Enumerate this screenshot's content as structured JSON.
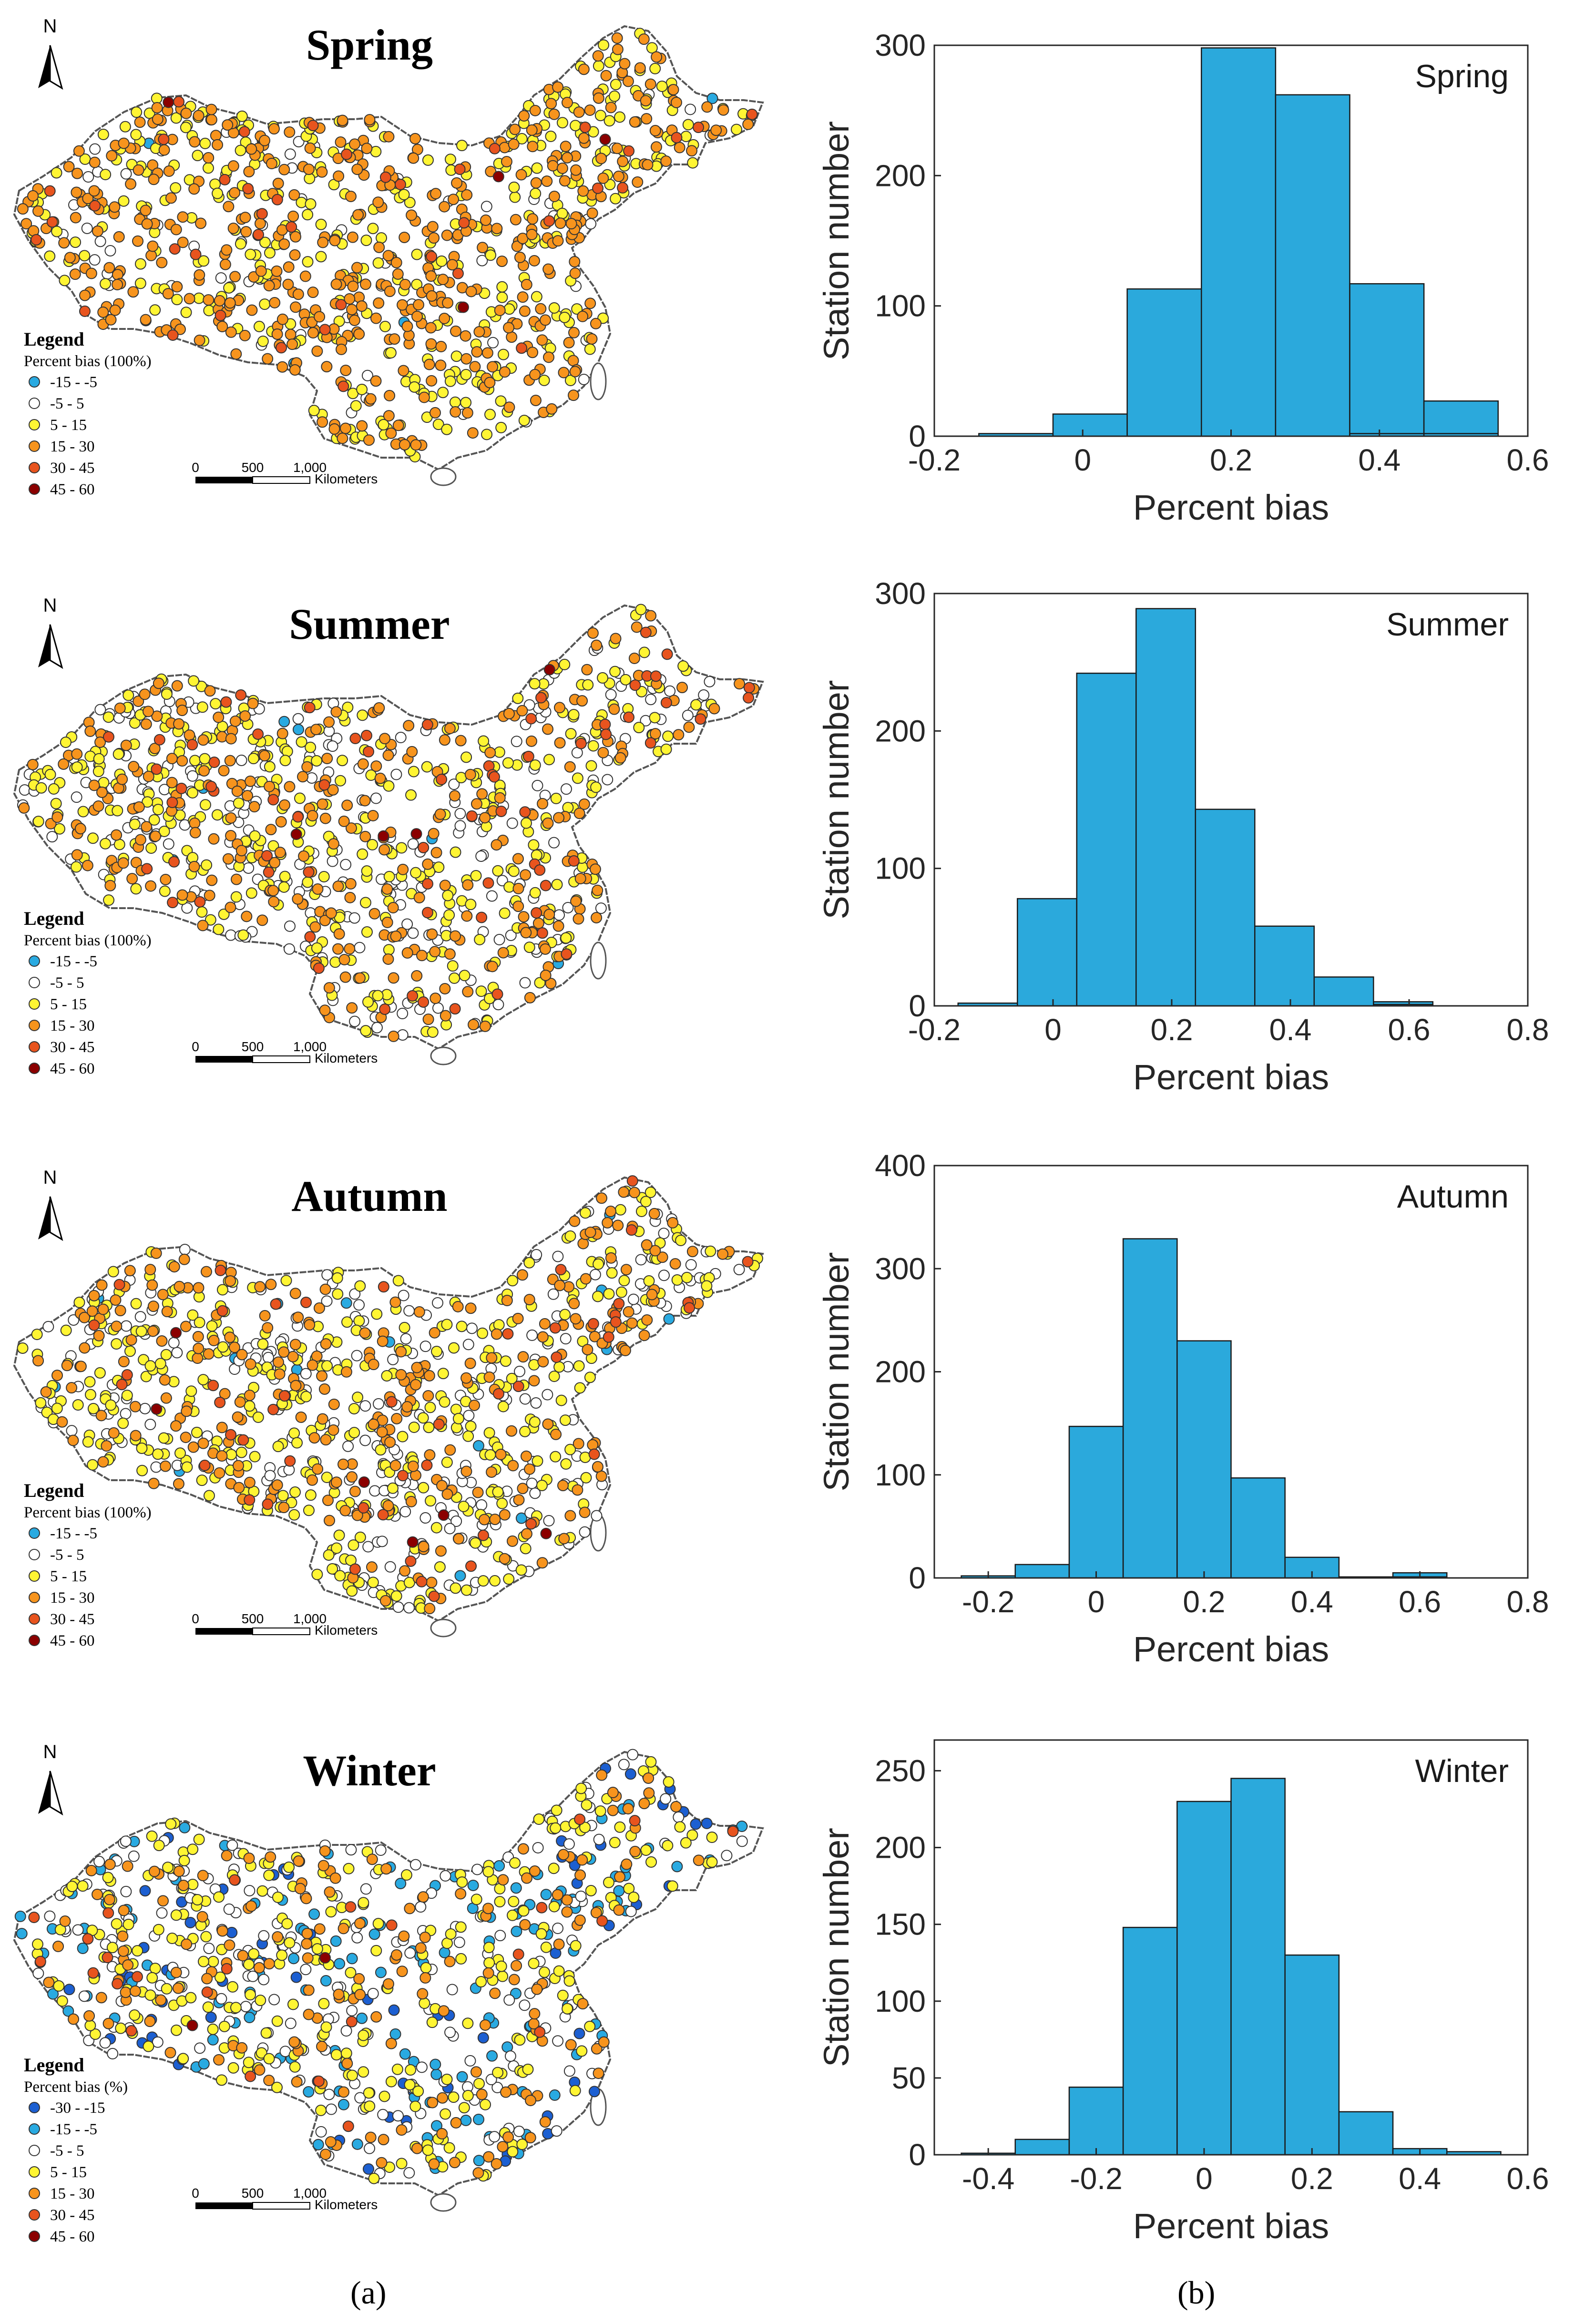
{
  "panel_labels": [
    "(a)",
    "(b)"
  ],
  "map_common": {
    "north_label": "N",
    "legend_title": "Legend",
    "scale_ticks": [
      "0",
      "500",
      "1,000"
    ],
    "scale_unit": "Kilometers"
  },
  "maps": [
    {
      "title": "Spring",
      "legend_subtitle": "Percent bias (100%)",
      "classes": [
        {
          "label": "-15 - -5",
          "color": "#29aae1"
        },
        {
          "label": "-5 - 5",
          "color": "#ffffff"
        },
        {
          "label": "5 - 15",
          "color": "#fff533"
        },
        {
          "label": "15 - 30",
          "color": "#f7941d"
        },
        {
          "label": "30 - 45",
          "color": "#e8541e"
        },
        {
          "label": "45 - 60",
          "color": "#8b0000"
        }
      ],
      "dots": {
        "blue": 4,
        "white": 60,
        "yellow": 380,
        "orange": 520,
        "red": 40,
        "darkred": 4
      }
    },
    {
      "title": "Summer",
      "legend_subtitle": "Percent bias (100%)",
      "classes": [
        {
          "label": "-15 - -5",
          "color": "#29aae1"
        },
        {
          "label": "-5 - 5",
          "color": "#ffffff"
        },
        {
          "label": "5 - 15",
          "color": "#fff533"
        },
        {
          "label": "15 - 30",
          "color": "#f7941d"
        },
        {
          "label": "30 - 45",
          "color": "#e8541e"
        },
        {
          "label": "45 - 60",
          "color": "#8b0000"
        }
      ],
      "dots": {
        "blue": 6,
        "white": 220,
        "yellow": 380,
        "orange": 320,
        "red": 70,
        "darkred": 4
      }
    },
    {
      "title": "Autumn",
      "legend_subtitle": "Percent bias (100%)",
      "classes": [
        {
          "label": "-15 - -5",
          "color": "#29aae1"
        },
        {
          "label": "-5 - 5",
          "color": "#ffffff"
        },
        {
          "label": "5 - 15",
          "color": "#fff533"
        },
        {
          "label": "15 - 30",
          "color": "#f7941d"
        },
        {
          "label": "30 - 45",
          "color": "#e8541e"
        },
        {
          "label": "45 - 60",
          "color": "#8b0000"
        }
      ],
      "dots": {
        "blue": 15,
        "white": 230,
        "yellow": 400,
        "orange": 300,
        "red": 50,
        "darkred": 6
      }
    },
    {
      "title": "Winter",
      "legend_subtitle": "Percent bias (%)",
      "classes": [
        {
          "label": "-30 - -15",
          "color": "#1c5fd1"
        },
        {
          "label": "-15 - -5",
          "color": "#29aae1"
        },
        {
          "label": "-5 - 5",
          "color": "#ffffff"
        },
        {
          "label": "5 - 15",
          "color": "#fff533"
        },
        {
          "label": "15 - 30",
          "color": "#f7941d"
        },
        {
          "label": "30 - 45",
          "color": "#e8541e"
        },
        {
          "label": "45 - 60",
          "color": "#8b0000"
        }
      ],
      "dots": {
        "darkblue": 70,
        "blue": 140,
        "white": 190,
        "yellow": 300,
        "orange": 180,
        "red": 25,
        "darkred": 2
      }
    }
  ],
  "chart_data": [
    {
      "type": "bar",
      "title": "Spring",
      "xlabel": "Percent bias",
      "ylabel": "Station number",
      "xlim": [
        -0.2,
        0.6
      ],
      "ylim": [
        0,
        300
      ],
      "xticks": [
        "-0.2",
        "0",
        "0.2",
        "0.4",
        "0.6"
      ],
      "yticks": [
        "0",
        "100",
        "200",
        "300"
      ],
      "bin_width": 0.1,
      "bin_starts": [
        -0.14,
        -0.04,
        0.06,
        0.16,
        0.26,
        0.36,
        0.46
      ],
      "bin_labels": [
        "-0.14–-0.04",
        "-0.04–0.06",
        "0.06–0.16",
        "0.16–0.26",
        "0.26–0.36",
        "0.36–0.46",
        "0.46–0.56"
      ],
      "values": [
        2,
        17,
        113,
        298,
        262,
        117,
        27
      ],
      "extra_bins": {
        "bin_starts": [
          0.36,
          0.46
        ],
        "values": [
          2,
          2
        ]
      }
    },
    {
      "type": "bar",
      "title": "Summer",
      "xlabel": "Percent bias",
      "ylabel": "Station number",
      "xlim": [
        -0.2,
        0.8
      ],
      "ylim": [
        0,
        300
      ],
      "xticks": [
        "-0.2",
        "0",
        "0.2",
        "0.4",
        "0.6",
        "0.8"
      ],
      "yticks": [
        "0",
        "100",
        "200",
        "300"
      ],
      "bin_width": 0.1,
      "bin_starts": [
        -0.26,
        -0.16,
        -0.06,
        0.04,
        0.14,
        0.24,
        0.34,
        0.44,
        0.54
      ],
      "values": [
        0,
        2,
        78,
        242,
        289,
        143,
        58,
        21,
        3
      ],
      "extra_bins": {
        "bin_starts": [
          0.54
        ],
        "values": [
          1
        ]
      }
    },
    {
      "type": "bar",
      "title": "Autumn",
      "xlabel": "Percent bias",
      "ylabel": "Station number",
      "xlim": [
        -0.3,
        0.8
      ],
      "ylim": [
        0,
        400
      ],
      "xticks": [
        "-0.2",
        "0",
        "0.2",
        "0.4",
        "0.6",
        "0.8"
      ],
      "yticks": [
        "0",
        "100",
        "200",
        "300",
        "400"
      ],
      "bin_width": 0.1,
      "bin_starts": [
        -0.25,
        -0.15,
        -0.05,
        0.05,
        0.15,
        0.25,
        0.35,
        0.45,
        0.55
      ],
      "values": [
        2,
        13,
        147,
        329,
        230,
        97,
        20,
        1,
        5
      ],
      "extra_bins": {
        "bin_starts": [
          0.55
        ],
        "values": [
          1
        ]
      }
    },
    {
      "type": "bar",
      "title": "Winter",
      "xlabel": "Percent bias",
      "ylabel": "Station number",
      "xlim": [
        -0.5,
        0.6
      ],
      "ylim": [
        0,
        270
      ],
      "xticks": [
        "-0.4",
        "-0.2",
        "0",
        "0.2",
        "0.4",
        "0.6"
      ],
      "yticks": [
        "0",
        "50",
        "100",
        "150",
        "200",
        "250"
      ],
      "bin_width": 0.1,
      "bin_starts": [
        -0.45,
        -0.35,
        -0.25,
        -0.15,
        -0.05,
        0.05,
        0.15,
        0.25,
        0.35,
        0.45
      ],
      "values": [
        1,
        10,
        44,
        148,
        230,
        245,
        130,
        28,
        4,
        2
      ]
    }
  ]
}
